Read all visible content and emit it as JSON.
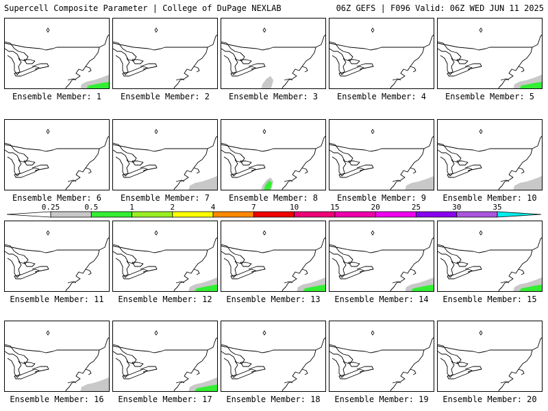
{
  "header": {
    "left": "Supercell Composite Parameter | College of DuPage NEXLAB",
    "right": "06Z GEFS | F096 Valid: 06Z WED JUN 11 2025"
  },
  "member_prefix": "Ensemble Member:",
  "colorbar": {
    "ticks": [
      "0.25",
      "0.5",
      "1",
      "2",
      "4",
      "7",
      "10",
      "15",
      "20",
      "25",
      "30",
      "35"
    ],
    "colors": [
      "#ffffff",
      "#c8c8c8",
      "#33ee33",
      "#99ee22",
      "#ffff00",
      "#ff8800",
      "#ee0000",
      "#ee0077",
      "#ee00aa",
      "#ee00ee",
      "#8800ee",
      "#aa55dd",
      "#00eeee"
    ]
  },
  "members": [
    {
      "label": "Ensemble Member: 1",
      "shading": [
        {
          "level": "0.25",
          "where": "southeast"
        },
        {
          "level": "0.5",
          "where": "southeast"
        }
      ]
    },
    {
      "label": "Ensemble Member: 2",
      "shading": []
    },
    {
      "label": "Ensemble Member: 3",
      "shading": [
        {
          "level": "0.25",
          "where": "south"
        }
      ]
    },
    {
      "label": "Ensemble Member: 4",
      "shading": []
    },
    {
      "label": "Ensemble Member: 5",
      "shading": [
        {
          "level": "0.25",
          "where": "southeast"
        },
        {
          "level": "0.5",
          "where": "southeast"
        }
      ]
    },
    {
      "label": "Ensemble Member: 6",
      "shading": []
    },
    {
      "label": "Ensemble Member: 7",
      "shading": [
        {
          "level": "0.25",
          "where": "southeast"
        }
      ]
    },
    {
      "label": "Ensemble Member: 8",
      "shading": [
        {
          "level": "0.25",
          "where": "south"
        },
        {
          "level": "0.5",
          "where": "south"
        }
      ]
    },
    {
      "label": "Ensemble Member: 9",
      "shading": [
        {
          "level": "0.25",
          "where": "southeast"
        }
      ]
    },
    {
      "label": "Ensemble Member: 10",
      "shading": [
        {
          "level": "0.25",
          "where": "southeast"
        }
      ]
    },
    {
      "label": "Ensemble Member: 11",
      "shading": []
    },
    {
      "label": "Ensemble Member: 12",
      "shading": [
        {
          "level": "0.25",
          "where": "southeast"
        },
        {
          "level": "0.5",
          "where": "southeast"
        }
      ]
    },
    {
      "label": "Ensemble Member: 13",
      "shading": [
        {
          "level": "0.25",
          "where": "southeast"
        },
        {
          "level": "0.5",
          "where": "southeast"
        }
      ]
    },
    {
      "label": "Ensemble Member: 14",
      "shading": [
        {
          "level": "0.25",
          "where": "southeast"
        },
        {
          "level": "0.5",
          "where": "southeast"
        }
      ]
    },
    {
      "label": "Ensemble Member: 15",
      "shading": [
        {
          "level": "0.25",
          "where": "southeast"
        },
        {
          "level": "0.5",
          "where": "southeast"
        }
      ]
    },
    {
      "label": "Ensemble Member: 16",
      "shading": [
        {
          "level": "0.25",
          "where": "southeast"
        }
      ]
    },
    {
      "label": "Ensemble Member: 17",
      "shading": [
        {
          "level": "0.25",
          "where": "southeast"
        },
        {
          "level": "0.5",
          "where": "southeast"
        }
      ]
    },
    {
      "label": "Ensemble Member: 18",
      "shading": []
    },
    {
      "label": "Ensemble Member: 19",
      "shading": []
    },
    {
      "label": "Ensemble Member: 20",
      "shading": []
    }
  ]
}
